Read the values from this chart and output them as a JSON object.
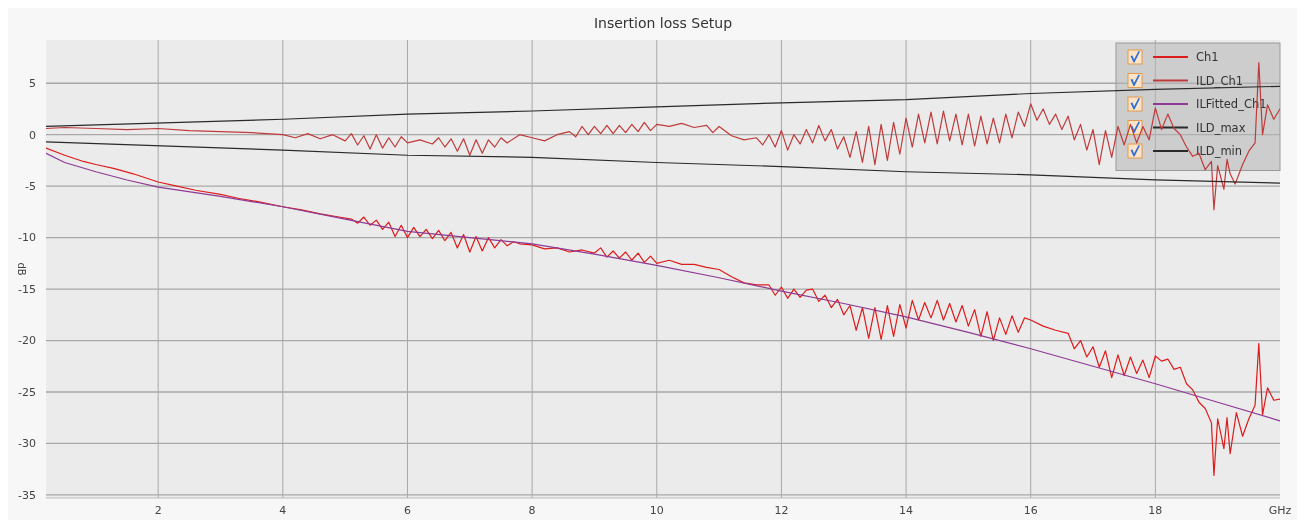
{
  "chart_data": {
    "type": "line",
    "title": "Insertion loss Setup",
    "xlabel": "GHz",
    "ylabel": "dB",
    "xlim": [
      0.2,
      20
    ],
    "xticks": [
      2,
      4,
      6,
      8,
      10,
      12,
      14,
      16,
      18
    ],
    "ylim": [
      -35.3,
      9.2
    ],
    "yticks": [
      5,
      0,
      -5,
      -10,
      -15,
      -20,
      -25,
      -30,
      -35
    ],
    "grid": true,
    "legend": "top right",
    "series": [
      {
        "name": "Ch1",
        "color": "#dd1c1c",
        "x": [
          0.2,
          0.5,
          0.8,
          1.0,
          1.3,
          1.6,
          2.0,
          2.3,
          2.6,
          3.0,
          3.3,
          3.6,
          4.0,
          4.3,
          4.6,
          4.9,
          5.1,
          5.2,
          5.3,
          5.4,
          5.5,
          5.6,
          5.7,
          5.8,
          5.9,
          6.0,
          6.1,
          6.2,
          6.3,
          6.4,
          6.5,
          6.6,
          6.7,
          6.8,
          6.9,
          7.0,
          7.1,
          7.2,
          7.3,
          7.4,
          7.5,
          7.6,
          7.7,
          7.8,
          8.0,
          8.2,
          8.4,
          8.6,
          8.8,
          9.0,
          9.1,
          9.2,
          9.3,
          9.4,
          9.5,
          9.6,
          9.7,
          9.8,
          9.9,
          10.0,
          10.2,
          10.4,
          10.6,
          10.8,
          11.0,
          11.2,
          11.4,
          11.6,
          11.8,
          11.9,
          12.0,
          12.1,
          12.2,
          12.3,
          12.4,
          12.5,
          12.6,
          12.7,
          12.8,
          12.9,
          13.0,
          13.1,
          13.2,
          13.3,
          13.4,
          13.5,
          13.6,
          13.7,
          13.8,
          13.9,
          14.0,
          14.1,
          14.2,
          14.3,
          14.4,
          14.5,
          14.6,
          14.7,
          14.8,
          14.9,
          15.0,
          15.1,
          15.2,
          15.3,
          15.4,
          15.5,
          15.6,
          15.7,
          15.8,
          15.9,
          16.0,
          16.2,
          16.4,
          16.6,
          16.7,
          16.8,
          16.9,
          17.0,
          17.1,
          17.2,
          17.3,
          17.4,
          17.5,
          17.6,
          17.7,
          17.8,
          17.9,
          18.0,
          18.1,
          18.2,
          18.3,
          18.4,
          18.5,
          18.6,
          18.7,
          18.8,
          18.9,
          18.94,
          19.0,
          19.1,
          19.15,
          19.2,
          19.3,
          19.4,
          19.5,
          19.6,
          19.66,
          19.72,
          19.8,
          19.9,
          20.0
        ],
        "values": [
          -1.3,
          -2.0,
          -2.6,
          -2.9,
          -3.3,
          -3.8,
          -4.6,
          -5.0,
          -5.4,
          -5.8,
          -6.2,
          -6.5,
          -7.0,
          -7.3,
          -7.7,
          -8.0,
          -8.2,
          -8.6,
          -8.0,
          -8.8,
          -8.3,
          -9.2,
          -8.5,
          -9.9,
          -8.8,
          -10.0,
          -9.0,
          -9.9,
          -9.2,
          -10.1,
          -9.3,
          -10.3,
          -9.5,
          -11.0,
          -9.7,
          -11.4,
          -9.9,
          -11.3,
          -10.0,
          -11.0,
          -10.2,
          -10.8,
          -10.4,
          -10.6,
          -10.7,
          -11.1,
          -11.0,
          -11.4,
          -11.2,
          -11.5,
          -11.0,
          -11.9,
          -11.3,
          -12.0,
          -11.4,
          -12.2,
          -11.5,
          -12.4,
          -11.8,
          -12.5,
          -12.2,
          -12.6,
          -12.6,
          -12.9,
          -13.1,
          -13.8,
          -14.4,
          -14.6,
          -14.6,
          -15.6,
          -14.8,
          -15.9,
          -15.0,
          -15.8,
          -15.1,
          -15.0,
          -16.2,
          -15.6,
          -16.8,
          -16.0,
          -17.5,
          -16.6,
          -19.0,
          -16.8,
          -19.8,
          -16.8,
          -19.9,
          -16.6,
          -19.6,
          -16.5,
          -18.8,
          -16.1,
          -18.0,
          -16.3,
          -17.8,
          -16.1,
          -18.0,
          -16.4,
          -18.2,
          -16.6,
          -18.6,
          -17.0,
          -19.6,
          -17.2,
          -20.0,
          -17.8,
          -19.4,
          -17.6,
          -19.2,
          -17.8,
          -18.0,
          -18.6,
          -19.0,
          -19.3,
          -20.8,
          -20.0,
          -21.6,
          -20.6,
          -22.6,
          -21.0,
          -23.6,
          -21.4,
          -23.4,
          -21.6,
          -23.2,
          -21.9,
          -23.6,
          -21.5,
          -22.0,
          -21.8,
          -22.8,
          -22.6,
          -24.2,
          -24.8,
          -26.0,
          -26.6,
          -28.0,
          -33.1,
          -27.6,
          -30.5,
          -27.5,
          -31.0,
          -27.0,
          -29.3,
          -27.6,
          -26.3,
          -20.3,
          -27.2,
          -24.6,
          -25.8,
          -25.7
        ]
      },
      {
        "name": "ILD_Ch1",
        "color": "#bf3b3b",
        "x": [
          0.2,
          0.5,
          1.0,
          1.5,
          2.0,
          2.5,
          3.0,
          3.5,
          4.0,
          4.2,
          4.4,
          4.6,
          4.8,
          5.0,
          5.1,
          5.2,
          5.3,
          5.4,
          5.5,
          5.6,
          5.7,
          5.8,
          5.9,
          6.0,
          6.2,
          6.4,
          6.5,
          6.6,
          6.7,
          6.8,
          6.9,
          7.0,
          7.1,
          7.2,
          7.3,
          7.4,
          7.5,
          7.6,
          7.8,
          8.0,
          8.2,
          8.4,
          8.6,
          8.7,
          8.8,
          8.9,
          9.0,
          9.1,
          9.2,
          9.3,
          9.4,
          9.5,
          9.6,
          9.7,
          9.8,
          9.9,
          10.0,
          10.2,
          10.4,
          10.6,
          10.8,
          10.9,
          11.0,
          11.2,
          11.4,
          11.6,
          11.7,
          11.8,
          11.9,
          12.0,
          12.1,
          12.2,
          12.3,
          12.4,
          12.5,
          12.6,
          12.7,
          12.8,
          12.9,
          13.0,
          13.1,
          13.2,
          13.3,
          13.4,
          13.5,
          13.6,
          13.7,
          13.8,
          13.9,
          14.0,
          14.1,
          14.2,
          14.3,
          14.4,
          14.5,
          14.6,
          14.7,
          14.8,
          14.9,
          15.0,
          15.1,
          15.2,
          15.3,
          15.4,
          15.5,
          15.6,
          15.7,
          15.8,
          15.9,
          16.0,
          16.1,
          16.2,
          16.3,
          16.4,
          16.5,
          16.6,
          16.7,
          16.8,
          16.9,
          17.0,
          17.1,
          17.2,
          17.3,
          17.4,
          17.5,
          17.6,
          17.7,
          17.8,
          17.9,
          18.0,
          18.1,
          18.2,
          18.3,
          18.4,
          18.5,
          18.6,
          18.7,
          18.8,
          18.9,
          18.94,
          19.0,
          19.1,
          19.15,
          19.2,
          19.28,
          19.4,
          19.5,
          19.6,
          19.66,
          19.72,
          19.8,
          19.9,
          20.0
        ],
        "values": [
          0.6,
          0.7,
          0.6,
          0.5,
          0.6,
          0.4,
          0.3,
          0.2,
          0.0,
          -0.3,
          0.1,
          -0.4,
          0.0,
          -0.6,
          0.1,
          -1.0,
          -0.1,
          -1.4,
          0.0,
          -1.3,
          -0.3,
          -1.2,
          -0.2,
          -0.8,
          -0.5,
          -0.9,
          -0.3,
          -1.2,
          -0.4,
          -1.6,
          -0.4,
          -2.0,
          -0.5,
          -1.8,
          -0.5,
          -1.2,
          -0.3,
          -0.8,
          0.0,
          -0.3,
          -0.6,
          0.0,
          0.3,
          -0.2,
          0.8,
          0.0,
          0.8,
          0.1,
          0.9,
          0.1,
          0.9,
          0.2,
          1.0,
          0.3,
          1.2,
          0.4,
          1.0,
          0.8,
          1.1,
          0.7,
          0.9,
          0.2,
          0.8,
          -0.1,
          -0.5,
          -0.3,
          -1.0,
          0.0,
          -1.2,
          0.4,
          -1.5,
          0.0,
          -0.9,
          0.5,
          -0.8,
          0.9,
          -0.6,
          0.5,
          -1.4,
          -0.2,
          -2.2,
          0.3,
          -2.7,
          0.8,
          -2.9,
          1.0,
          -2.5,
          1.2,
          -1.9,
          1.6,
          -1.2,
          2.0,
          -0.8,
          2.2,
          -0.9,
          2.3,
          -0.6,
          2.0,
          -1.0,
          2.0,
          -1.1,
          1.8,
          -0.9,
          1.6,
          -0.8,
          2.0,
          -0.3,
          2.2,
          0.8,
          3.0,
          1.4,
          2.5,
          1.0,
          2.0,
          0.5,
          1.8,
          -0.5,
          1.0,
          -1.5,
          0.5,
          -2.9,
          0.4,
          -2.2,
          0.8,
          -1.0,
          1.0,
          -0.8,
          0.8,
          -0.5,
          2.6,
          0.5,
          2.0,
          0.6,
          0.0,
          -1.2,
          -2.1,
          -1.8,
          -3.4,
          -2.6,
          -7.3,
          -3.0,
          -5.3,
          -2.4,
          -3.8,
          -4.8,
          -2.9,
          -1.6,
          -0.8,
          7.0,
          0.0,
          2.9,
          1.5,
          2.5
        ]
      },
      {
        "name": "ILFitted_Ch1",
        "color": "#8e3a94",
        "x": [
          0.2,
          0.5,
          1,
          1.5,
          2,
          3,
          4,
          5,
          6,
          7,
          8,
          9,
          10,
          11,
          12,
          13,
          14,
          15,
          16,
          17,
          18,
          19,
          20
        ],
        "values": [
          -1.8,
          -2.7,
          -3.6,
          -4.4,
          -5.1,
          -6.0,
          -7.0,
          -8.2,
          -9.4,
          -10.0,
          -10.6,
          -11.6,
          -12.7,
          -13.9,
          -15.2,
          -16.4,
          -17.7,
          -19.2,
          -20.8,
          -22.5,
          -24.2,
          -26.0,
          -27.8
        ]
      },
      {
        "name": "ILD_max",
        "color": "#2a2a2a",
        "x": [
          0.2,
          4,
          6,
          8,
          10,
          12,
          14,
          16,
          18,
          20
        ],
        "values": [
          0.8,
          1.5,
          2.0,
          2.3,
          2.7,
          3.1,
          3.4,
          4.0,
          4.4,
          4.7
        ]
      },
      {
        "name": "ILD_min",
        "color": "#2a2a2a",
        "x": [
          0.2,
          4,
          6,
          8,
          10,
          12,
          14,
          16,
          18,
          20
        ],
        "values": [
          -0.7,
          -1.5,
          -2.0,
          -2.2,
          -2.7,
          -3.1,
          -3.6,
          -3.9,
          -4.4,
          -4.7
        ]
      }
    ]
  }
}
